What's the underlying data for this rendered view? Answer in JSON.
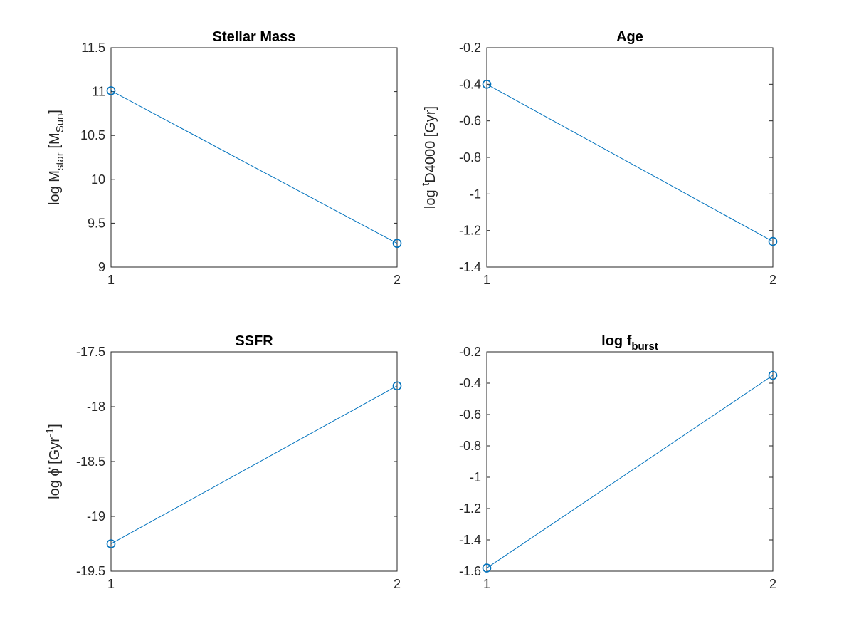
{
  "figure": {
    "background": "#ffffff",
    "axis_color": "#262626",
    "series_color": "#0072bd"
  },
  "chart_data": [
    {
      "type": "line",
      "title": "Stellar Mass",
      "title_sub": "",
      "ylabel": {
        "pre": "log M",
        "sub1": "star",
        "mid": " [M",
        "sub2": "Sun",
        "post": "]"
      },
      "x": [
        1,
        2
      ],
      "values": [
        11.01,
        9.27
      ],
      "xlim": [
        1,
        2
      ],
      "ylim": [
        9,
        11.5
      ],
      "xticks": [
        "1",
        "2"
      ],
      "yticks": [
        "9",
        "9.5",
        "10",
        "10.5",
        "11",
        "11.5"
      ],
      "marker": "circle",
      "grid": false
    },
    {
      "type": "line",
      "title": "Age",
      "title_sub": "",
      "ylabel": {
        "pre": "log ",
        "sup1": "t",
        "mid": "D4000 [Gyr]"
      },
      "x": [
        1,
        2
      ],
      "values": [
        -0.4,
        -1.26
      ],
      "xlim": [
        1,
        2
      ],
      "ylim": [
        -1.4,
        -0.2
      ],
      "xticks": [
        "1",
        "2"
      ],
      "yticks": [
        "-1.4",
        "-1.2",
        "-1",
        "-0.8",
        "-0.6",
        "-0.4",
        "-0.2"
      ],
      "marker": "circle",
      "grid": false
    },
    {
      "type": "line",
      "title": "SSFR",
      "title_sub": "",
      "ylabel": {
        "pre": "log ",
        "sym": "ϕ̇",
        "mid": " [Gyr",
        "sup1": "-1",
        "post": "]"
      },
      "x": [
        1,
        2
      ],
      "values": [
        -19.25,
        -17.81
      ],
      "xlim": [
        1,
        2
      ],
      "ylim": [
        -19.5,
        -17.5
      ],
      "xticks": [
        "1",
        "2"
      ],
      "yticks": [
        "-19.5",
        "-19",
        "-18.5",
        "-18",
        "-17.5"
      ],
      "marker": "circle",
      "grid": false
    },
    {
      "type": "line",
      "title": "log f",
      "title_sub": "burst",
      "ylabel": null,
      "x": [
        1,
        2
      ],
      "values": [
        -1.58,
        -0.35
      ],
      "xlim": [
        1,
        2
      ],
      "ylim": [
        -1.6,
        -0.2
      ],
      "xticks": [
        "1",
        "2"
      ],
      "yticks": [
        "-1.6",
        "-1.4",
        "-1.2",
        "-1",
        "-0.8",
        "-0.6",
        "-0.4",
        "-0.2"
      ],
      "marker": "circle",
      "grid": false
    }
  ]
}
